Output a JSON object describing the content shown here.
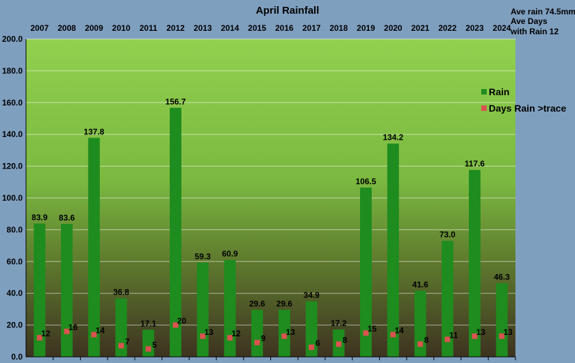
{
  "chart_data": {
    "type": "bar",
    "title": "April Rainfall",
    "categories": [
      "2007",
      "2008",
      "2009",
      "2010",
      "2011",
      "2012",
      "2013",
      "2014",
      "2015",
      "2016",
      "2017",
      "2018",
      "2019",
      "2020",
      "2021",
      "2022",
      "2023",
      "2024"
    ],
    "series": [
      {
        "name": "Rain",
        "type": "bar",
        "values": [
          83.9,
          83.6,
          137.8,
          36.8,
          17.1,
          156.7,
          59.3,
          60.9,
          29.6,
          29.6,
          34.9,
          17.2,
          106.5,
          134.2,
          41.6,
          73.0,
          117.6,
          46.3
        ],
        "labels": [
          "83.9",
          "83.6",
          "137.8",
          "36.8",
          "17.1",
          "156.7",
          "59.3",
          "60.9",
          "29.6",
          "29.6",
          "34.9",
          "17.2",
          "106.5",
          "134.2",
          "41.6",
          "73.0",
          "117.6",
          "46.3"
        ]
      },
      {
        "name": "Days Rain >trace",
        "type": "marker",
        "values": [
          12,
          16,
          14,
          7,
          5,
          20,
          13,
          12,
          9,
          13,
          6,
          8,
          15,
          14,
          8,
          11,
          13,
          13
        ]
      }
    ],
    "ylim": [
      0,
      200
    ],
    "yticks": [
      "0.0",
      "20.0",
      "40.0",
      "60.0",
      "80.0",
      "100.0",
      "120.0",
      "140.0",
      "160.0",
      "180.0",
      "200.0"
    ],
    "legend_position": "right",
    "grid": "horizontal",
    "colors": {
      "rain": "#1e8c1e",
      "days": "#d9534f",
      "background": "#7f9fbf",
      "plot_top": "#92d050",
      "plot_bottom": "#3d3320"
    },
    "annotations": [
      "Ave rain 74.5mm",
      "Ave Days",
      "with Rain 12"
    ]
  }
}
